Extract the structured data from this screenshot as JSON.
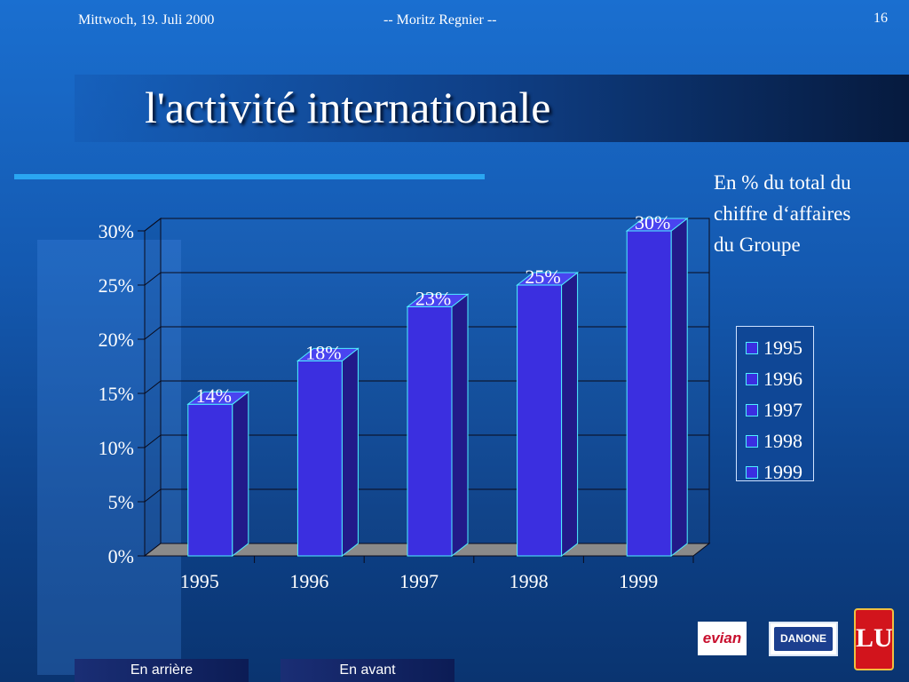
{
  "header": {
    "date": "Mittwoch, 19. Juli 2000",
    "author": "-- Moritz Regnier --",
    "page_number": "16"
  },
  "slide": {
    "title": "l'activité internationale",
    "note_lines": [
      "En % du total du",
      "chiffre d‘affaires",
      "du Groupe"
    ]
  },
  "chart_data": {
    "type": "bar",
    "categories": [
      "1995",
      "1996",
      "1997",
      "1998",
      "1999"
    ],
    "values": [
      14,
      18,
      23,
      25,
      30
    ],
    "data_labels": [
      "14%",
      "18%",
      "23%",
      "25%",
      "30%"
    ],
    "y_ticks": [
      "0%",
      "5%",
      "10%",
      "15%",
      "20%",
      "25%",
      "30%"
    ],
    "ylim": [
      0,
      30
    ],
    "grid": true,
    "legend": {
      "position": "right",
      "entries": [
        "1995",
        "1996",
        "1997",
        "1998",
        "1999"
      ]
    },
    "colors": {
      "bar_front": "#3b2fe0",
      "bar_side": "#221a8a",
      "bar_top": "#4a44f0",
      "bar_edge": "#4ff0ff",
      "floor": "#8a8a8a"
    }
  },
  "logos": {
    "evian": "evian",
    "danone": "DANONE",
    "lu": "LU"
  },
  "nav": {
    "back_label": "En arrière",
    "forward_label": "En avant"
  }
}
